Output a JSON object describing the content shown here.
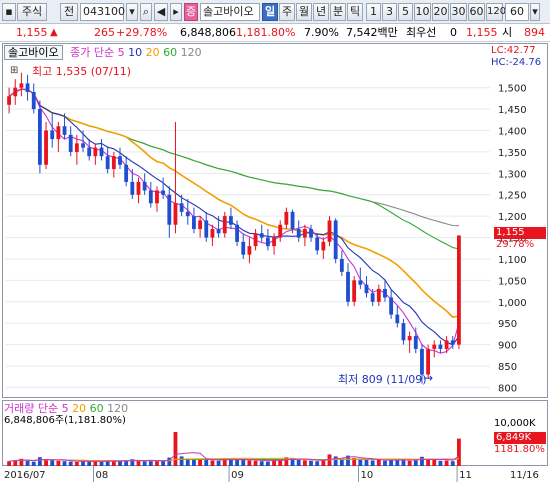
{
  "toolbar": {
    "market": "주식",
    "jeon": "전",
    "code": "043100",
    "name": "솔고바이오",
    "jeung": "증",
    "periods": [
      "일",
      "주",
      "월",
      "년",
      "분",
      "틱"
    ],
    "period_selected": "일",
    "intervals": [
      "1",
      "3",
      "5",
      "10",
      "20",
      "30",
      "60",
      "120"
    ],
    "count": "60"
  },
  "quote": {
    "price": "1,155",
    "change": "265",
    "change_pct": "+29.78%",
    "volume": "6,848,806",
    "volume_pct": "1,181.80%",
    "turnover_pct": "7.90%",
    "value": "7,542백만",
    "order_label": "최우선",
    "order_qty": "0",
    "order_price": "1,155",
    "market_lbl": "시",
    "market_val": "894"
  },
  "price_legend": {
    "name": "솔고바이오",
    "label": "종가 단순",
    "ma": [
      "5",
      "10",
      "20",
      "60",
      "120"
    ],
    "ma_colors": [
      "#cc33cc",
      "#2233bb",
      "#f0a000",
      "#33aa33",
      "#888888"
    ],
    "lc": "LC:42.77",
    "hc": "HC:-24.76"
  },
  "annotations": {
    "high": "최고 1,535 (07/11)",
    "low": "최저 809 (11/09)"
  },
  "last_badge": {
    "price": "1,155",
    "pct": "29.78%"
  },
  "volume_legend": {
    "label": "거래량 단순",
    "ma": [
      "5",
      "20",
      "60",
      "120"
    ],
    "ma_colors": [
      "#cc33cc",
      "#f0a000",
      "#33aa33",
      "#888888"
    ],
    "summary": "6,848,806주(1,181.80%)",
    "axis_top": "10,000K",
    "badge_vol": "6,849K",
    "badge_pct": "1181.80%"
  },
  "date_axis": {
    "labels": [
      "2016/07",
      "08",
      "09",
      "10",
      "11",
      "11/16"
    ]
  },
  "chart_data": {
    "type": "candlestick",
    "ylim": [
      780,
      1560
    ],
    "yticks": [
      800,
      850,
      900,
      950,
      1000,
      1050,
      1100,
      1150,
      1200,
      1250,
      1300,
      1350,
      1400,
      1450,
      1500
    ],
    "candles": [
      [
        1460,
        1500,
        1440,
        1480
      ],
      [
        1480,
        1520,
        1460,
        1500
      ],
      [
        1500,
        1535,
        1480,
        1510
      ],
      [
        1510,
        1530,
        1470,
        1490
      ],
      [
        1490,
        1510,
        1440,
        1450
      ],
      [
        1450,
        1470,
        1300,
        1320
      ],
      [
        1320,
        1420,
        1310,
        1400
      ],
      [
        1400,
        1440,
        1360,
        1380
      ],
      [
        1380,
        1420,
        1350,
        1410
      ],
      [
        1410,
        1440,
        1380,
        1390
      ],
      [
        1390,
        1410,
        1340,
        1350
      ],
      [
        1350,
        1390,
        1320,
        1370
      ],
      [
        1370,
        1400,
        1350,
        1360
      ],
      [
        1360,
        1380,
        1330,
        1340
      ],
      [
        1340,
        1370,
        1320,
        1360
      ],
      [
        1360,
        1380,
        1330,
        1340
      ],
      [
        1340,
        1360,
        1300,
        1310
      ],
      [
        1310,
        1350,
        1290,
        1340
      ],
      [
        1340,
        1360,
        1310,
        1320
      ],
      [
        1320,
        1340,
        1270,
        1280
      ],
      [
        1280,
        1310,
        1240,
        1250
      ],
      [
        1250,
        1290,
        1230,
        1280
      ],
      [
        1280,
        1300,
        1250,
        1260
      ],
      [
        1260,
        1280,
        1220,
        1230
      ],
      [
        1230,
        1270,
        1210,
        1260
      ],
      [
        1260,
        1290,
        1240,
        1250
      ],
      [
        1250,
        1270,
        1150,
        1180
      ],
      [
        1180,
        1420,
        1160,
        1230
      ],
      [
        1230,
        1250,
        1200,
        1210
      ],
      [
        1210,
        1240,
        1180,
        1200
      ],
      [
        1200,
        1220,
        1160,
        1170
      ],
      [
        1170,
        1200,
        1150,
        1190
      ],
      [
        1190,
        1210,
        1140,
        1150
      ],
      [
        1150,
        1180,
        1130,
        1170
      ],
      [
        1170,
        1200,
        1150,
        1160
      ],
      [
        1160,
        1210,
        1150,
        1200
      ],
      [
        1200,
        1220,
        1170,
        1180
      ],
      [
        1180,
        1190,
        1130,
        1140
      ],
      [
        1140,
        1160,
        1100,
        1110
      ],
      [
        1110,
        1150,
        1090,
        1130
      ],
      [
        1130,
        1170,
        1120,
        1160
      ],
      [
        1160,
        1180,
        1140,
        1150
      ],
      [
        1150,
        1170,
        1120,
        1130
      ],
      [
        1130,
        1160,
        1110,
        1150
      ],
      [
        1150,
        1190,
        1140,
        1180
      ],
      [
        1180,
        1220,
        1170,
        1210
      ],
      [
        1210,
        1215,
        1160,
        1170
      ],
      [
        1170,
        1190,
        1140,
        1150
      ],
      [
        1150,
        1180,
        1130,
        1170
      ],
      [
        1170,
        1180,
        1140,
        1150
      ],
      [
        1150,
        1160,
        1110,
        1120
      ],
      [
        1120,
        1150,
        1100,
        1140
      ],
      [
        1140,
        1200,
        1130,
        1190
      ],
      [
        1190,
        1195,
        1090,
        1100
      ],
      [
        1100,
        1120,
        1060,
        1070
      ],
      [
        1070,
        1090,
        990,
        1000
      ],
      [
        1000,
        1060,
        990,
        1050
      ],
      [
        1050,
        1080,
        1030,
        1040
      ],
      [
        1040,
        1060,
        1010,
        1020
      ],
      [
        1020,
        1030,
        990,
        1000
      ],
      [
        1000,
        1040,
        990,
        1030
      ],
      [
        1030,
        1050,
        1000,
        1010
      ],
      [
        1010,
        1030,
        960,
        970
      ],
      [
        970,
        990,
        940,
        950
      ],
      [
        950,
        960,
        900,
        910
      ],
      [
        910,
        930,
        880,
        920
      ],
      [
        920,
        940,
        880,
        890
      ],
      [
        890,
        900,
        809,
        830
      ],
      [
        830,
        900,
        820,
        890
      ],
      [
        890,
        910,
        870,
        900
      ],
      [
        900,
        910,
        880,
        890
      ],
      [
        890,
        920,
        880,
        910
      ],
      [
        910,
        920,
        890,
        900
      ],
      [
        900,
        1155,
        890,
        1155
      ]
    ],
    "volume": [
      1200,
      1500,
      1800,
      1300,
      1100,
      2200,
      1700,
      1400,
      1300,
      1200,
      1100,
      1000,
      1300,
      1200,
      1100,
      1000,
      1400,
      1300,
      1200,
      1500,
      1700,
      1300,
      1200,
      1400,
      1200,
      1300,
      2100,
      8500,
      2400,
      1900,
      1700,
      1500,
      1600,
      1400,
      1300,
      1800,
      1700,
      1500,
      1600,
      1400,
      1300,
      1200,
      1100,
      1500,
      1700,
      2200,
      1900,
      1600,
      1400,
      1300,
      1200,
      1400,
      2900,
      2400,
      1800,
      2600,
      2000,
      1700,
      1500,
      1400,
      1500,
      1300,
      1700,
      1600,
      1500,
      1300,
      1400,
      2300,
      1800,
      1500,
      1300,
      1400,
      1200,
      6849
    ],
    "volume_ylim": [
      0,
      10500
    ]
  }
}
